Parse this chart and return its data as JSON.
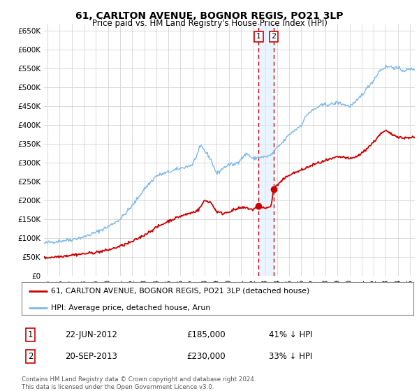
{
  "title": "61, CARLTON AVENUE, BOGNOR REGIS, PO21 3LP",
  "subtitle": "Price paid vs. HM Land Registry's House Price Index (HPI)",
  "ylim": [
    0,
    670000
  ],
  "yticks": [
    0,
    50000,
    100000,
    150000,
    200000,
    250000,
    300000,
    350000,
    400000,
    450000,
    500000,
    550000,
    600000,
    650000
  ],
  "xlim_start": 1994.7,
  "xlim_end": 2025.4,
  "hpi_color": "#7ab8e8",
  "price_color": "#cc0000",
  "transaction1_date": 2012.47,
  "transaction1_price": 185000,
  "transaction2_date": 2013.72,
  "transaction2_price": 230000,
  "legend_line1": "61, CARLTON AVENUE, BOGNOR REGIS, PO21 3LP (detached house)",
  "legend_line2": "HPI: Average price, detached house, Arun",
  "table_row1": [
    "1",
    "22-JUN-2012",
    "£185,000",
    "41% ↓ HPI"
  ],
  "table_row2": [
    "2",
    "20-SEP-2013",
    "£230,000",
    "33% ↓ HPI"
  ],
  "footnote": "Contains HM Land Registry data © Crown copyright and database right 2024.\nThis data is licensed under the Open Government Licence v3.0.",
  "bg_color": "#ffffff",
  "grid_color": "#cccccc",
  "shade_color": "#ddeeff"
}
